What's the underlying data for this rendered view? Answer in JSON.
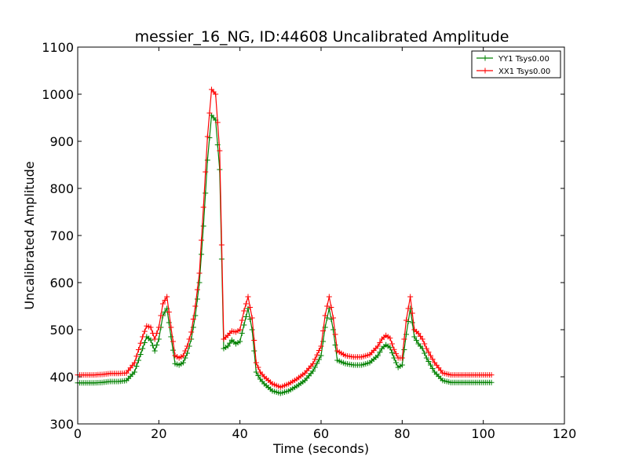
{
  "chart_data": {
    "type": "line",
    "title": "messier_16_NG, ID:44608 Uncalibrated Amplitude",
    "xlabel": "Time (seconds)",
    "ylabel": "Uncalibrated Amplitude",
    "xlim": [
      0,
      120
    ],
    "ylim": [
      300,
      1100
    ],
    "xticks": [
      0,
      20,
      40,
      60,
      80,
      100,
      120
    ],
    "yticks": [
      300,
      400,
      500,
      600,
      700,
      800,
      900,
      1000,
      1100
    ],
    "grid": false,
    "legend_position": "top-right",
    "marker": "plus",
    "series": [
      {
        "name": "YY1 Tsys0.00",
        "color": "#008000",
        "x": [
          0,
          2,
          4,
          6,
          8,
          10,
          12,
          14,
          16,
          17,
          18,
          19,
          20,
          21,
          22,
          23,
          24,
          25,
          26,
          27,
          28,
          29,
          30,
          31,
          32,
          33,
          34,
          35,
          36,
          37,
          38,
          39,
          40,
          41,
          42,
          43,
          44,
          45,
          46,
          48,
          50,
          52,
          54,
          56,
          58,
          60,
          61,
          62,
          63,
          64,
          66,
          68,
          70,
          72,
          74,
          75,
          76,
          77,
          78,
          79,
          80,
          81,
          82,
          83,
          84,
          85,
          86,
          88,
          90,
          92,
          95,
          100,
          102
        ],
        "y": [
          387,
          387,
          387,
          388,
          390,
          390,
          392,
          410,
          460,
          485,
          478,
          455,
          480,
          530,
          545,
          485,
          428,
          425,
          430,
          450,
          480,
          530,
          600,
          720,
          860,
          955,
          945,
          840,
          460,
          465,
          478,
          470,
          475,
          510,
          545,
          500,
          410,
          395,
          385,
          370,
          365,
          370,
          380,
          392,
          412,
          445,
          505,
          545,
          500,
          435,
          428,
          425,
          425,
          430,
          445,
          460,
          468,
          462,
          440,
          420,
          425,
          490,
          545,
          485,
          470,
          460,
          440,
          410,
          392,
          388,
          388,
          388,
          388
        ]
      },
      {
        "name": "XX1 Tsys0.00",
        "color": "#ff0000",
        "x": [
          0,
          2,
          4,
          6,
          8,
          10,
          12,
          14,
          16,
          17,
          18,
          19,
          20,
          21,
          22,
          23,
          24,
          25,
          26,
          27,
          28,
          29,
          30,
          31,
          32,
          33,
          34,
          35,
          36,
          37,
          38,
          39,
          40,
          41,
          42,
          43,
          44,
          45,
          46,
          48,
          50,
          52,
          54,
          56,
          58,
          60,
          61,
          62,
          63,
          64,
          66,
          68,
          70,
          72,
          74,
          75,
          76,
          77,
          78,
          79,
          80,
          81,
          82,
          83,
          84,
          85,
          86,
          88,
          90,
          92,
          95,
          100,
          102
        ],
        "y": [
          404,
          404,
          404,
          405,
          407,
          407,
          408,
          430,
          485,
          508,
          505,
          480,
          505,
          555,
          570,
          505,
          445,
          440,
          445,
          465,
          495,
          550,
          620,
          760,
          910,
          1010,
          1000,
          880,
          480,
          488,
          497,
          495,
          500,
          540,
          570,
          525,
          430,
          410,
          400,
          385,
          378,
          385,
          395,
          408,
          428,
          465,
          530,
          570,
          525,
          455,
          445,
          442,
          442,
          447,
          465,
          480,
          488,
          482,
          458,
          440,
          440,
          520,
          570,
          500,
          492,
          480,
          460,
          430,
          408,
          404,
          404,
          404,
          404
        ]
      }
    ]
  }
}
